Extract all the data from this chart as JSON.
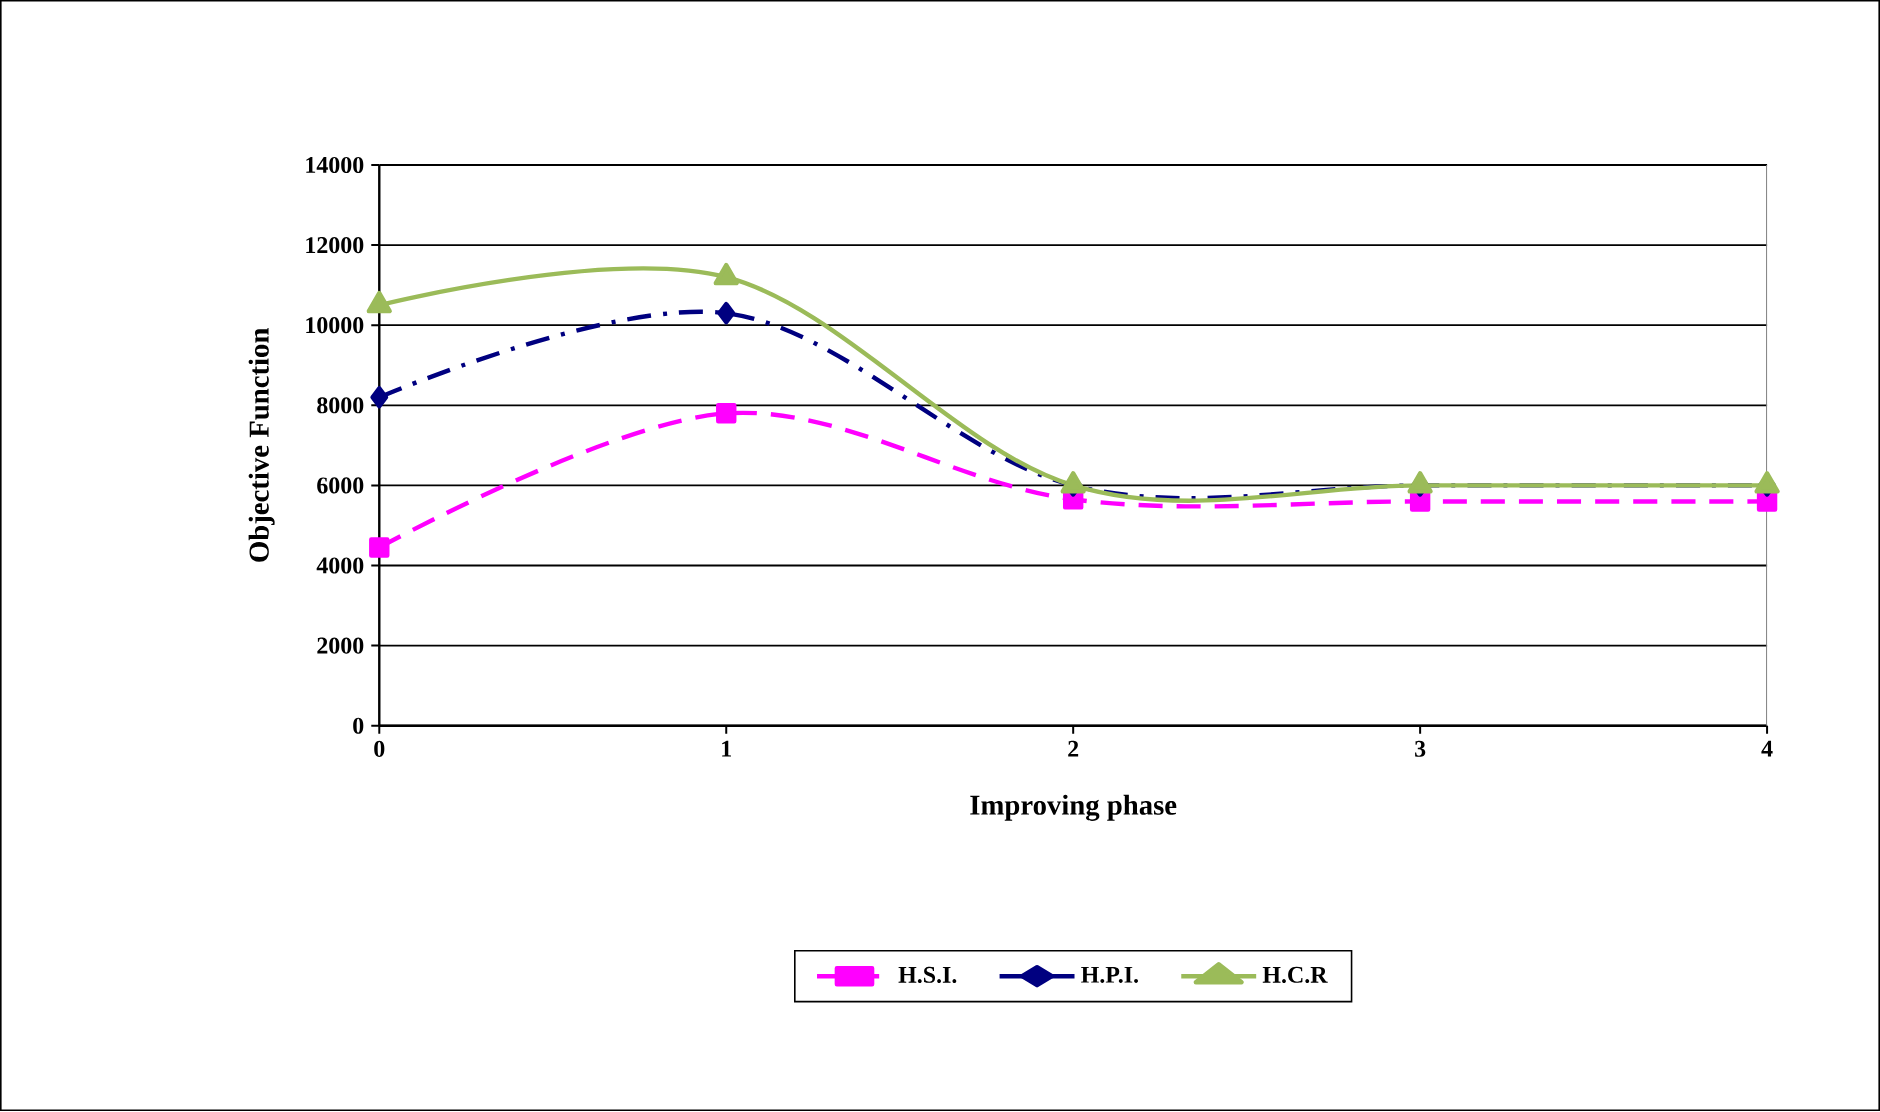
{
  "chart_data": {
    "type": "line",
    "xlabel": "Improving phase",
    "ylabel": "Objective Function",
    "x": [
      0,
      1,
      2,
      3,
      4
    ],
    "xlim": [
      0,
      4
    ],
    "xticks": [
      0,
      1,
      2,
      3,
      4
    ],
    "ylim": [
      0,
      14000
    ],
    "yticks": [
      0,
      2000,
      4000,
      6000,
      8000,
      10000,
      12000,
      14000
    ],
    "grid": "y",
    "legend": "bottom",
    "series": [
      {
        "name": "H.S.I.",
        "color": "#ff00ff",
        "marker": "square",
        "line_style": "dashed",
        "values": [
          4450,
          7800,
          5650,
          5600,
          5600
        ]
      },
      {
        "name": "H.P.I.",
        "color": "#000080",
        "marker": "diamond",
        "line_style": "dashdot",
        "values": [
          8200,
          10300,
          6000,
          6000,
          6000
        ]
      },
      {
        "name": "H.C.R",
        "color": "#9bbb59",
        "marker": "triangle",
        "line_style": "solid",
        "values": [
          10500,
          11200,
          6000,
          6000,
          6000
        ]
      }
    ]
  }
}
